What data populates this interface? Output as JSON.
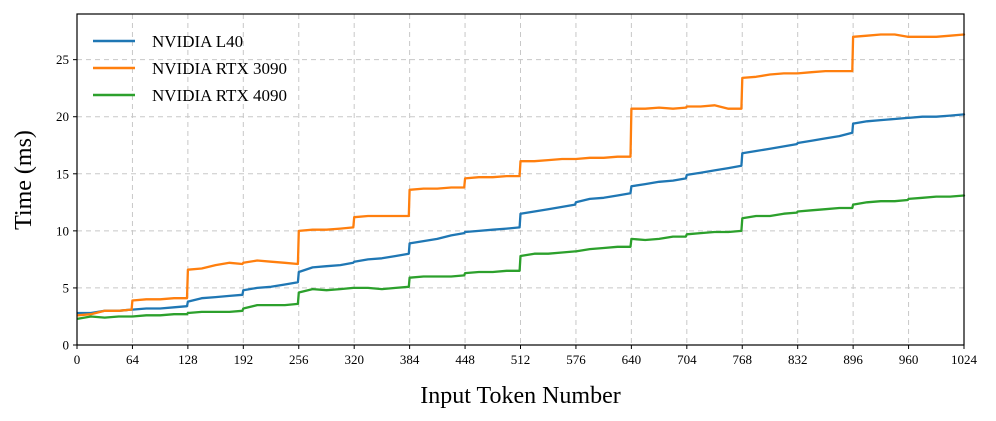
{
  "chart_data": {
    "type": "line",
    "xlabel": "Input Token Number",
    "ylabel": "Time (ms)",
    "xlim": [
      0,
      1024
    ],
    "ylim": [
      0,
      29
    ],
    "x_ticks": [
      0,
      64,
      128,
      192,
      256,
      320,
      384,
      448,
      512,
      576,
      640,
      704,
      768,
      832,
      896,
      960,
      1024
    ],
    "y_ticks": [
      0,
      5,
      10,
      15,
      20,
      25
    ],
    "grid": true,
    "legend_position": "top-left",
    "series": [
      {
        "name": "NVIDIA L40",
        "color": "#1f77b4",
        "x": [
          1,
          16,
          32,
          48,
          63,
          64,
          80,
          96,
          112,
          127,
          128,
          144,
          160,
          176,
          191,
          192,
          208,
          224,
          240,
          255,
          256,
          272,
          288,
          304,
          319,
          320,
          336,
          352,
          368,
          383,
          384,
          400,
          416,
          432,
          447,
          448,
          464,
          480,
          496,
          511,
          512,
          528,
          544,
          560,
          575,
          576,
          592,
          608,
          624,
          639,
          640,
          656,
          672,
          688,
          703,
          704,
          720,
          736,
          752,
          767,
          768,
          784,
          800,
          816,
          831,
          832,
          848,
          864,
          880,
          895,
          896,
          912,
          928,
          944,
          959,
          960,
          976,
          992,
          1008,
          1024
        ],
        "y": [
          2.8,
          2.8,
          3.0,
          3.0,
          3.1,
          3.1,
          3.2,
          3.2,
          3.3,
          3.4,
          3.8,
          4.1,
          4.2,
          4.3,
          4.4,
          4.8,
          5.0,
          5.1,
          5.3,
          5.5,
          6.4,
          6.8,
          6.9,
          7.0,
          7.2,
          7.3,
          7.5,
          7.6,
          7.8,
          8.0,
          8.9,
          9.1,
          9.3,
          9.6,
          9.8,
          9.9,
          10.0,
          10.1,
          10.2,
          10.3,
          11.5,
          11.7,
          11.9,
          12.1,
          12.3,
          12.5,
          12.8,
          12.9,
          13.1,
          13.3,
          13.9,
          14.1,
          14.3,
          14.4,
          14.6,
          14.9,
          15.1,
          15.3,
          15.5,
          15.7,
          16.8,
          17.0,
          17.2,
          17.4,
          17.6,
          17.7,
          17.9,
          18.1,
          18.3,
          18.6,
          19.4,
          19.6,
          19.7,
          19.8,
          19.9,
          19.9,
          20.0,
          20.0,
          20.1,
          20.2
        ]
      },
      {
        "name": "NVIDIA RTX 3090",
        "color": "#ff7f0e",
        "x": [
          1,
          16,
          32,
          48,
          63,
          64,
          80,
          96,
          112,
          127,
          128,
          144,
          160,
          176,
          191,
          192,
          208,
          224,
          240,
          255,
          256,
          272,
          288,
          304,
          319,
          320,
          336,
          352,
          368,
          383,
          384,
          400,
          416,
          432,
          447,
          448,
          464,
          480,
          496,
          511,
          512,
          528,
          544,
          560,
          575,
          576,
          592,
          608,
          624,
          639,
          640,
          656,
          672,
          688,
          703,
          704,
          720,
          736,
          752,
          767,
          768,
          784,
          800,
          816,
          831,
          832,
          848,
          864,
          880,
          895,
          896,
          912,
          928,
          944,
          959,
          960,
          976,
          992,
          1008,
          1024
        ],
        "y": [
          2.6,
          2.7,
          3.0,
          3.0,
          3.1,
          3.9,
          4.0,
          4.0,
          4.1,
          4.1,
          6.6,
          6.7,
          7.0,
          7.2,
          7.1,
          7.2,
          7.4,
          7.3,
          7.2,
          7.1,
          10.0,
          10.1,
          10.1,
          10.2,
          10.3,
          11.2,
          11.3,
          11.3,
          11.3,
          11.3,
          13.6,
          13.7,
          13.7,
          13.8,
          13.8,
          14.6,
          14.7,
          14.7,
          14.8,
          14.8,
          16.1,
          16.1,
          16.2,
          16.3,
          16.3,
          16.3,
          16.4,
          16.4,
          16.5,
          16.5,
          20.7,
          20.7,
          20.8,
          20.7,
          20.8,
          20.9,
          20.9,
          21.0,
          20.7,
          20.7,
          23.4,
          23.5,
          23.7,
          23.8,
          23.8,
          23.8,
          23.9,
          24.0,
          24.0,
          24.0,
          27.0,
          27.1,
          27.2,
          27.2,
          27.0,
          27.0,
          27.0,
          27.0,
          27.1,
          27.2
        ]
      },
      {
        "name": "NVIDIA RTX 4090",
        "color": "#2ca02c",
        "x": [
          1,
          16,
          32,
          48,
          63,
          64,
          80,
          96,
          112,
          127,
          128,
          144,
          160,
          176,
          191,
          192,
          208,
          224,
          240,
          255,
          256,
          272,
          288,
          304,
          319,
          320,
          336,
          352,
          368,
          383,
          384,
          400,
          416,
          432,
          447,
          448,
          464,
          480,
          496,
          511,
          512,
          528,
          544,
          560,
          575,
          576,
          592,
          608,
          624,
          639,
          640,
          656,
          672,
          688,
          703,
          704,
          720,
          736,
          752,
          767,
          768,
          784,
          800,
          816,
          831,
          832,
          848,
          864,
          880,
          895,
          896,
          912,
          928,
          944,
          959,
          960,
          976,
          992,
          1008,
          1024
        ],
        "y": [
          2.3,
          2.5,
          2.4,
          2.5,
          2.5,
          2.5,
          2.6,
          2.6,
          2.7,
          2.7,
          2.8,
          2.9,
          2.9,
          2.9,
          3.0,
          3.2,
          3.5,
          3.5,
          3.5,
          3.6,
          4.6,
          4.9,
          4.8,
          4.9,
          5.0,
          5.0,
          5.0,
          4.9,
          5.0,
          5.1,
          5.9,
          6.0,
          6.0,
          6.0,
          6.1,
          6.3,
          6.4,
          6.4,
          6.5,
          6.5,
          7.8,
          8.0,
          8.0,
          8.1,
          8.2,
          8.2,
          8.4,
          8.5,
          8.6,
          8.6,
          9.3,
          9.2,
          9.3,
          9.5,
          9.5,
          9.7,
          9.8,
          9.9,
          9.9,
          10.0,
          11.1,
          11.3,
          11.3,
          11.5,
          11.6,
          11.7,
          11.8,
          11.9,
          12.0,
          12.0,
          12.3,
          12.5,
          12.6,
          12.6,
          12.7,
          12.8,
          12.9,
          13.0,
          13.0,
          13.1
        ]
      }
    ]
  }
}
